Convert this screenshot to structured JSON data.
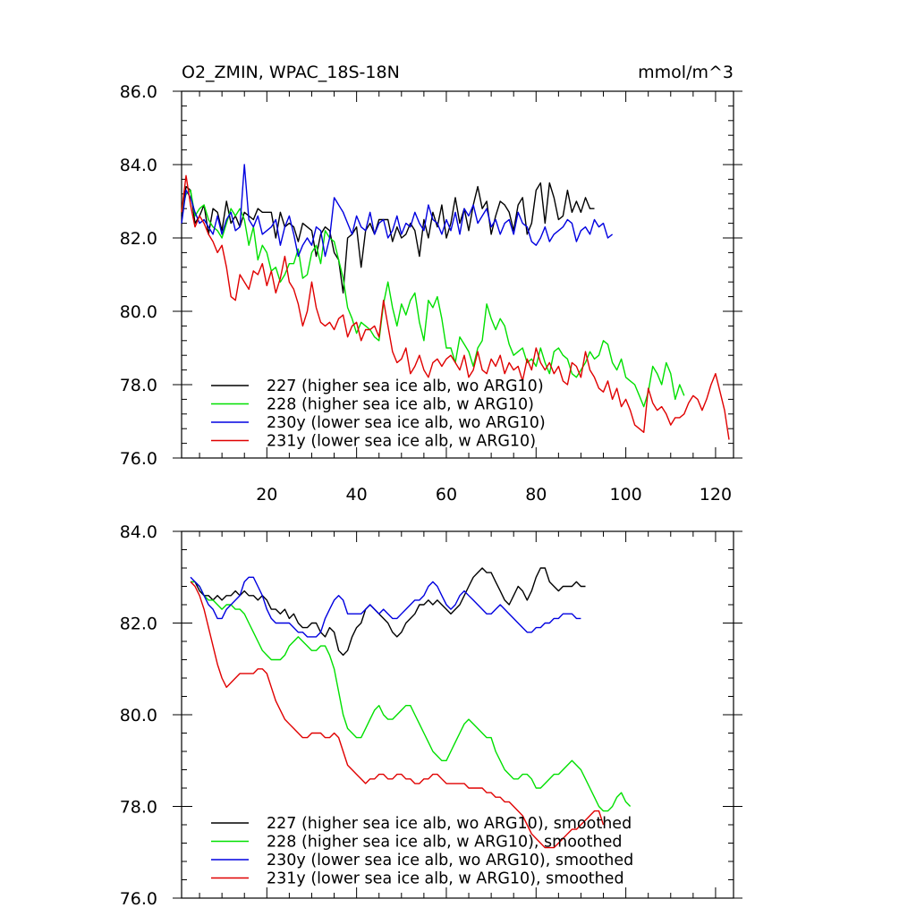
{
  "chart_data": [
    {
      "type": "line",
      "title": "O2_ZMIN, WPAC_18S-18N",
      "units": "mmol/m^3",
      "xlim": [
        1,
        124
      ],
      "ylim": [
        76,
        86
      ],
      "xticks": [
        20,
        40,
        60,
        80,
        100,
        120
      ],
      "yticks": [
        76,
        78,
        80,
        82,
        84,
        86
      ],
      "ytick_labels": [
        "76.0",
        "78.0",
        "80.0",
        "82.0",
        "84.0",
        "86.0"
      ],
      "legend_position": "bottom-left",
      "series": [
        {
          "name": "227 (higher sea ice alb, wo ARG10)",
          "color": "#000000",
          "x_start": 1,
          "values": [
            82.6,
            83.4,
            83.3,
            82.4,
            82.6,
            82.9,
            82.1,
            82.8,
            82.7,
            82.2,
            83.0,
            82.4,
            82.6,
            82.3,
            82.7,
            82.6,
            82.5,
            82.8,
            82.7,
            82.7,
            82.7,
            82.0,
            82.7,
            82.3,
            82.4,
            82.3,
            81.9,
            82.4,
            82.3,
            82.2,
            81.5,
            82.1,
            82.3,
            82.2,
            81.6,
            81.4,
            80.5,
            82.0,
            82.1,
            82.3,
            81.2,
            82.2,
            82.4,
            82.1,
            82.5,
            82.5,
            82.5,
            81.9,
            82.3,
            82.0,
            82.1,
            82.4,
            82.2,
            81.5,
            82.5,
            82.0,
            82.7,
            82.3,
            82.9,
            82.0,
            82.4,
            83.1,
            82.4,
            82.8,
            82.2,
            82.9,
            83.4,
            82.8,
            83.0,
            82.1,
            82.6,
            83.0,
            82.9,
            82.7,
            82.2,
            82.9,
            83.1,
            82.1,
            82.4,
            83.3,
            83.5,
            82.4,
            83.5,
            83.1,
            82.5,
            82.6,
            83.3,
            82.7,
            83.0,
            82.7,
            83.1,
            82.8,
            82.8
          ]
        },
        {
          "name": "228 (higher sea ice alb, w ARG10)",
          "color": "#00e000",
          "x_start": 1,
          "values": [
            82.7,
            83.2,
            83.3,
            82.6,
            82.8,
            82.9,
            82.5,
            82.3,
            82.2,
            82.0,
            82.4,
            82.8,
            82.6,
            82.8,
            82.5,
            81.8,
            82.3,
            81.4,
            81.8,
            81.6,
            81.1,
            81.2,
            80.8,
            81.0,
            81.3,
            81.3,
            81.7,
            80.9,
            81.0,
            81.6,
            81.8,
            81.3,
            82.2,
            82.0,
            81.9,
            81.4,
            80.9,
            80.1,
            79.8,
            79.4,
            79.7,
            79.6,
            79.5,
            79.3,
            79.2,
            80.2,
            80.8,
            80.1,
            79.6,
            80.2,
            79.9,
            80.3,
            80.5,
            79.7,
            79.2,
            80.3,
            80.1,
            80.4,
            79.8,
            79.0,
            79.0,
            78.6,
            79.3,
            79.1,
            78.9,
            78.5,
            79.0,
            79.2,
            80.2,
            79.8,
            79.5,
            79.8,
            79.6,
            79.1,
            78.8,
            78.9,
            79.0,
            78.6,
            78.7,
            78.5,
            79.0,
            78.6,
            78.3,
            78.9,
            79.0,
            78.8,
            78.7,
            78.3,
            78.2,
            78.4,
            78.6,
            78.9,
            78.7,
            78.8,
            79.2,
            79.1,
            78.6,
            78.4,
            78.7,
            78.2,
            78.1,
            78.0,
            77.7,
            77.4,
            77.8,
            78.5,
            78.3,
            78.0,
            78.6,
            78.3,
            77.6,
            78.0,
            77.7
          ]
        },
        {
          "name": "230y (lower sea ice alb, wo ARG10)",
          "color": "#0000e0",
          "x_start": 1,
          "values": [
            82.4,
            83.3,
            83.1,
            82.7,
            82.4,
            82.5,
            82.3,
            82.1,
            82.6,
            82.1,
            82.5,
            82.7,
            82.2,
            82.3,
            84.0,
            82.5,
            82.3,
            82.6,
            82.1,
            82.2,
            82.3,
            82.5,
            81.8,
            82.3,
            82.6,
            82.1,
            81.5,
            81.8,
            82.0,
            81.8,
            82.3,
            82.2,
            81.5,
            82.0,
            83.1,
            82.9,
            82.7,
            82.4,
            82.1,
            82.6,
            82.3,
            82.2,
            82.7,
            82.1,
            82.4,
            82.5,
            82.0,
            82.2,
            82.6,
            82.1,
            82.4,
            82.3,
            82.7,
            82.4,
            82.2,
            82.9,
            82.5,
            82.4,
            82.1,
            82.5,
            82.2,
            82.7,
            82.1,
            82.8,
            82.6,
            82.9,
            82.4,
            82.6,
            82.8,
            82.3,
            82.5,
            82.1,
            82.4,
            82.5,
            82.1,
            82.7,
            82.4,
            82.3,
            81.9,
            81.8,
            82.0,
            82.3,
            81.9,
            82.1,
            82.2,
            82.3,
            82.5,
            82.4,
            81.9,
            82.2,
            82.3,
            82.1,
            82.5,
            82.3,
            82.4,
            82.0,
            82.1
          ]
        },
        {
          "name": "231y (lower sea ice alb, w ARG10)",
          "color": "#e00000",
          "x_start": 1,
          "values": [
            82.7,
            83.7,
            82.9,
            82.3,
            82.6,
            82.4,
            82.1,
            81.9,
            81.6,
            81.8,
            81.2,
            80.4,
            80.3,
            81.0,
            80.8,
            80.6,
            81.1,
            81.0,
            81.3,
            80.7,
            81.1,
            80.5,
            80.9,
            81.5,
            80.8,
            80.6,
            80.2,
            79.6,
            80.0,
            80.8,
            80.1,
            79.7,
            79.6,
            79.7,
            79.5,
            79.8,
            79.9,
            79.3,
            79.6,
            79.7,
            79.2,
            79.5,
            79.5,
            79.6,
            79.3,
            80.3,
            79.6,
            78.9,
            78.6,
            78.7,
            79.0,
            78.3,
            78.5,
            78.8,
            78.4,
            78.2,
            78.6,
            78.7,
            78.5,
            78.7,
            78.8,
            78.6,
            78.4,
            78.8,
            78.2,
            78.4,
            78.9,
            78.4,
            78.3,
            78.7,
            78.5,
            78.8,
            78.3,
            78.6,
            78.4,
            78.5,
            78.1,
            78.7,
            78.4,
            79.0,
            78.6,
            78.4,
            78.6,
            78.3,
            78.5,
            78.1,
            78.0,
            78.6,
            78.5,
            78.2,
            78.9,
            78.4,
            78.2,
            77.9,
            77.8,
            78.1,
            77.6,
            77.9,
            77.4,
            77.6,
            77.3,
            76.9,
            76.8,
            76.7,
            77.9,
            77.5,
            77.3,
            77.4,
            77.2,
            76.9,
            77.1,
            77.1,
            77.2,
            77.5,
            77.7,
            77.6,
            77.3,
            77.6,
            78.0,
            78.3,
            77.8,
            77.3,
            76.5
          ]
        }
      ]
    },
    {
      "type": "line",
      "title": "",
      "xlim": [
        1,
        124
      ],
      "ylim": [
        76,
        84
      ],
      "xticks": [
        20,
        40,
        60,
        80,
        100,
        120
      ],
      "yticks": [
        76,
        78,
        80,
        82,
        84
      ],
      "ytick_labels": [
        "76.0",
        "78.0",
        "80.0",
        "82.0",
        "84.0"
      ],
      "legend_position": "bottom-left",
      "series": [
        {
          "name": "227 (higher sea ice alb, wo ARG10), smoothed",
          "color": "#000000",
          "x_start": 3,
          "values": [
            82.9,
            82.9,
            82.7,
            82.6,
            82.6,
            82.5,
            82.6,
            82.5,
            82.6,
            82.6,
            82.7,
            82.6,
            82.7,
            82.6,
            82.6,
            82.5,
            82.6,
            82.5,
            82.3,
            82.3,
            82.2,
            82.3,
            82.1,
            82.2,
            82.0,
            81.9,
            81.9,
            82.0,
            82.0,
            81.8,
            81.7,
            81.9,
            81.8,
            81.4,
            81.3,
            81.4,
            81.7,
            81.9,
            82.0,
            82.3,
            82.4,
            82.3,
            82.2,
            82.1,
            82.0,
            81.8,
            81.7,
            81.8,
            82.0,
            82.1,
            82.2,
            82.4,
            82.4,
            82.5,
            82.4,
            82.5,
            82.4,
            82.3,
            82.2,
            82.3,
            82.4,
            82.6,
            82.8,
            83.0,
            83.1,
            83.2,
            83.1,
            83.1,
            82.9,
            82.7,
            82.5,
            82.4,
            82.6,
            82.8,
            82.7,
            82.5,
            82.7,
            83.0,
            83.2,
            83.2,
            82.9,
            82.8,
            82.7,
            82.8,
            82.8,
            82.8,
            82.9,
            82.8,
            82.8
          ]
        },
        {
          "name": "228 (higher sea ice alb, w ARG10), smoothed",
          "color": "#00e000",
          "x_start": 3,
          "values": [
            82.9,
            82.9,
            82.8,
            82.6,
            82.5,
            82.5,
            82.4,
            82.3,
            82.4,
            82.4,
            82.3,
            82.3,
            82.2,
            82.0,
            81.8,
            81.6,
            81.4,
            81.3,
            81.2,
            81.2,
            81.2,
            81.3,
            81.5,
            81.6,
            81.7,
            81.6,
            81.5,
            81.4,
            81.4,
            81.5,
            81.5,
            81.3,
            81.0,
            80.5,
            80.0,
            79.7,
            79.6,
            79.5,
            79.5,
            79.7,
            79.9,
            80.1,
            80.2,
            80.0,
            79.9,
            79.9,
            80.0,
            80.1,
            80.2,
            80.2,
            80.0,
            79.8,
            79.6,
            79.4,
            79.2,
            79.1,
            79.0,
            79.0,
            79.2,
            79.4,
            79.6,
            79.8,
            79.9,
            79.8,
            79.7,
            79.6,
            79.5,
            79.5,
            79.2,
            79.0,
            78.8,
            78.7,
            78.6,
            78.6,
            78.7,
            78.7,
            78.6,
            78.4,
            78.4,
            78.5,
            78.6,
            78.7,
            78.7,
            78.8,
            78.9,
            79.0,
            78.9,
            78.8,
            78.6,
            78.4,
            78.2,
            78.0,
            77.9,
            77.9,
            78.0,
            78.2,
            78.3,
            78.1,
            78.0
          ]
        },
        {
          "name": "230y (lower sea ice alb, wo ARG10), smoothed",
          "color": "#0000e0",
          "x_start": 3,
          "values": [
            83.0,
            82.9,
            82.8,
            82.6,
            82.4,
            82.3,
            82.1,
            82.1,
            82.3,
            82.4,
            82.5,
            82.6,
            82.9,
            83.0,
            83.0,
            82.8,
            82.6,
            82.3,
            82.1,
            82.0,
            82.0,
            82.0,
            82.0,
            81.9,
            81.8,
            81.8,
            81.7,
            81.7,
            81.7,
            81.8,
            82.1,
            82.3,
            82.5,
            82.6,
            82.5,
            82.2,
            82.2,
            82.2,
            82.2,
            82.3,
            82.4,
            82.3,
            82.2,
            82.3,
            82.2,
            82.1,
            82.1,
            82.2,
            82.3,
            82.4,
            82.5,
            82.5,
            82.6,
            82.8,
            82.9,
            82.8,
            82.6,
            82.4,
            82.3,
            82.4,
            82.6,
            82.7,
            82.6,
            82.5,
            82.4,
            82.3,
            82.2,
            82.2,
            82.3,
            82.4,
            82.3,
            82.2,
            82.1,
            82.0,
            81.9,
            81.8,
            81.8,
            81.9,
            81.9,
            82.0,
            82.0,
            82.1,
            82.1,
            82.2,
            82.2,
            82.2,
            82.1,
            82.1
          ]
        },
        {
          "name": "231y (lower sea ice alb, w ARG10), smoothed",
          "color": "#e00000",
          "x_start": 3,
          "values": [
            82.9,
            82.8,
            82.6,
            82.3,
            81.9,
            81.5,
            81.1,
            80.8,
            80.6,
            80.7,
            80.8,
            80.9,
            80.9,
            80.9,
            80.9,
            81.0,
            81.0,
            80.9,
            80.6,
            80.3,
            80.1,
            79.9,
            79.8,
            79.7,
            79.6,
            79.5,
            79.5,
            79.6,
            79.6,
            79.6,
            79.5,
            79.5,
            79.6,
            79.5,
            79.2,
            78.9,
            78.8,
            78.7,
            78.6,
            78.5,
            78.6,
            78.6,
            78.7,
            78.7,
            78.6,
            78.6,
            78.7,
            78.7,
            78.6,
            78.6,
            78.5,
            78.5,
            78.6,
            78.6,
            78.7,
            78.7,
            78.6,
            78.5,
            78.5,
            78.5,
            78.5,
            78.5,
            78.4,
            78.4,
            78.4,
            78.4,
            78.3,
            78.3,
            78.2,
            78.2,
            78.1,
            78.1,
            78.0,
            77.9,
            77.8,
            77.6,
            77.4,
            77.3,
            77.2,
            77.1,
            77.1,
            77.1,
            77.2,
            77.3,
            77.4,
            77.5,
            77.5,
            77.6,
            77.7,
            77.8,
            77.9,
            77.9,
            77.6
          ]
        }
      ]
    }
  ]
}
